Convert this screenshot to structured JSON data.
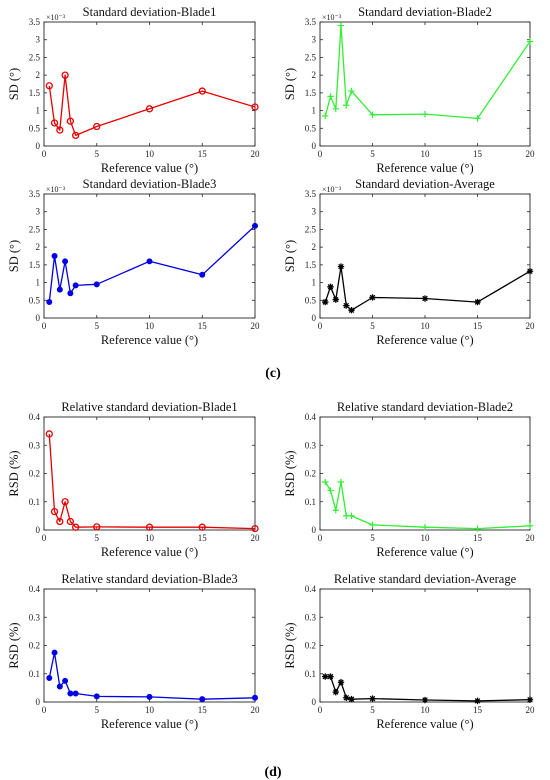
{
  "panel_labels": {
    "c": "(c)",
    "d": "(d)"
  },
  "common": {
    "xlabel": "Reference value (°)",
    "x_ticks": [
      0,
      5,
      10,
      15,
      20
    ],
    "xlim": [
      0,
      20
    ]
  },
  "chart_data": [
    {
      "id": "c1",
      "type": "line",
      "title": "Standard deviation-Blade1",
      "ylabel": "SD (°)",
      "exponent": "×10⁻³",
      "ylim": [
        0,
        3.5
      ],
      "y_ticks": [
        0,
        0.5,
        1,
        1.5,
        2,
        2.5,
        3,
        3.5
      ],
      "color": "#e60000",
      "marker": "circle",
      "x": [
        0.5,
        1,
        1.5,
        2,
        2.5,
        3,
        5,
        10,
        15,
        20
      ],
      "values": [
        1.7,
        0.65,
        0.45,
        2.0,
        0.7,
        0.3,
        0.55,
        1.05,
        1.55,
        1.1
      ]
    },
    {
      "id": "c2",
      "type": "line",
      "title": "Standard deviation-Blade2",
      "ylabel": "SD (°)",
      "exponent": "×10⁻³",
      "ylim": [
        0,
        3.5
      ],
      "y_ticks": [
        0,
        0.5,
        1,
        1.5,
        2,
        2.5,
        3,
        3.5
      ],
      "color": "#33ee33",
      "marker": "plus",
      "x": [
        0.5,
        1,
        1.5,
        2,
        2.5,
        3,
        5,
        10,
        15,
        20
      ],
      "values": [
        0.85,
        1.4,
        1.05,
        3.4,
        1.15,
        1.55,
        0.88,
        0.9,
        0.78,
        2.95
      ]
    },
    {
      "id": "c3",
      "type": "line",
      "title": "Standard deviation-Blade3",
      "ylabel": "SD (°)",
      "exponent": "×10⁻³",
      "ylim": [
        0,
        3.5
      ],
      "y_ticks": [
        0,
        0.5,
        1,
        1.5,
        2,
        2.5,
        3,
        3.5
      ],
      "color": "#0000e6",
      "marker": "dot",
      "x": [
        0.5,
        1,
        1.5,
        2,
        2.5,
        3,
        5,
        10,
        15,
        20
      ],
      "values": [
        0.45,
        1.75,
        0.8,
        1.6,
        0.7,
        0.92,
        0.95,
        1.6,
        1.22,
        2.6
      ]
    },
    {
      "id": "c4",
      "type": "line",
      "title": "Standard deviation-Average",
      "ylabel": "SD (°)",
      "exponent": "×10⁻³",
      "ylim": [
        0,
        3.5
      ],
      "y_ticks": [
        0,
        0.5,
        1,
        1.5,
        2,
        2.5,
        3,
        3.5
      ],
      "color": "#000000",
      "marker": "star",
      "x": [
        0.5,
        1,
        1.5,
        2,
        2.5,
        3,
        5,
        10,
        15,
        20
      ],
      "values": [
        0.45,
        0.88,
        0.52,
        1.45,
        0.35,
        0.22,
        0.58,
        0.55,
        0.45,
        1.32
      ]
    },
    {
      "id": "d1",
      "type": "line",
      "title": "Relative standard deviation-Blade1",
      "ylabel": "RSD (%)",
      "exponent": "",
      "ylim": [
        0,
        0.4
      ],
      "y_ticks": [
        0,
        0.1,
        0.2,
        0.3,
        0.4
      ],
      "color": "#e60000",
      "marker": "circle",
      "x": [
        0.5,
        1,
        1.5,
        2,
        2.5,
        3,
        5,
        10,
        15,
        20
      ],
      "values": [
        0.34,
        0.065,
        0.03,
        0.1,
        0.03,
        0.01,
        0.011,
        0.01,
        0.01,
        0.005
      ]
    },
    {
      "id": "d2",
      "type": "line",
      "title": "Relative standard deviation-Blade2",
      "ylabel": "RSD (%)",
      "exponent": "",
      "ylim": [
        0,
        0.4
      ],
      "y_ticks": [
        0,
        0.1,
        0.2,
        0.3,
        0.4
      ],
      "color": "#33ee33",
      "marker": "plus",
      "x": [
        0.5,
        1,
        1.5,
        2,
        2.5,
        3,
        5,
        10,
        15,
        20
      ],
      "values": [
        0.17,
        0.14,
        0.07,
        0.17,
        0.05,
        0.05,
        0.018,
        0.01,
        0.005,
        0.015
      ]
    },
    {
      "id": "d3",
      "type": "line",
      "title": "Relative standard deviation-Blade3",
      "ylabel": "RSD (%)",
      "exponent": "",
      "ylim": [
        0,
        0.4
      ],
      "y_ticks": [
        0,
        0.1,
        0.2,
        0.3,
        0.4
      ],
      "color": "#0000e6",
      "marker": "dot",
      "x": [
        0.5,
        1,
        1.5,
        2,
        2.5,
        3,
        5,
        10,
        15,
        20
      ],
      "values": [
        0.085,
        0.175,
        0.055,
        0.075,
        0.03,
        0.03,
        0.02,
        0.018,
        0.01,
        0.015
      ]
    },
    {
      "id": "d4",
      "type": "line",
      "title": "Relative standard deviation-Average",
      "ylabel": "RSD (%)",
      "exponent": "",
      "ylim": [
        0,
        0.4
      ],
      "y_ticks": [
        0,
        0.1,
        0.2,
        0.3,
        0.4
      ],
      "color": "#000000",
      "marker": "star",
      "x": [
        0.5,
        1,
        1.5,
        2,
        2.5,
        3,
        5,
        10,
        15,
        20
      ],
      "values": [
        0.09,
        0.09,
        0.035,
        0.07,
        0.015,
        0.01,
        0.012,
        0.007,
        0.004,
        0.008
      ]
    }
  ]
}
